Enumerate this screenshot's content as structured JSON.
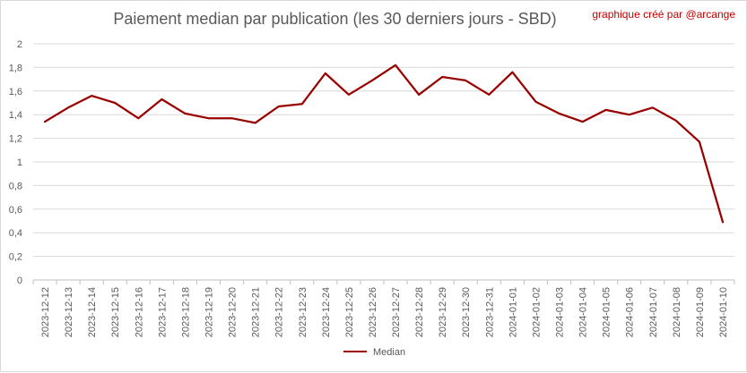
{
  "title": "Paiement median par publication (les 30 derniers jours - SBD)",
  "credit": "graphique créé par @arcange",
  "chart_data": {
    "type": "line",
    "title": "Paiement median par publication (les 30 derniers jours - SBD)",
    "xlabel": "",
    "ylabel": "",
    "ylim": [
      0,
      2
    ],
    "yticks": [
      "0",
      "0,2",
      "0,4",
      "0,6",
      "0,8",
      "1",
      "1,2",
      "1,4",
      "1,6",
      "1,8",
      "2"
    ],
    "grid": true,
    "legend_position": "bottom",
    "x": [
      "2023-12-12",
      "2023-12-13",
      "2023-12-14",
      "2023-12-15",
      "2023-12-16",
      "2023-12-17",
      "2023-12-18",
      "2023-12-19",
      "2023-12-20",
      "2023-12-21",
      "2023-12-22",
      "2023-12-23",
      "2023-12-24",
      "2023-12-25",
      "2023-12-26",
      "2023-12-27",
      "2023-12-28",
      "2023-12-29",
      "2023-12-30",
      "2023-12-31",
      "2024-01-01",
      "2024-01-02",
      "2024-01-03",
      "2024-01-04",
      "2024-01-05",
      "2024-01-06",
      "2024-01-07",
      "2024-01-08",
      "2024-01-09",
      "2024-01-10"
    ],
    "series": [
      {
        "name": "Median",
        "color": "#990000",
        "values": [
          1.34,
          1.46,
          1.56,
          1.5,
          1.37,
          1.53,
          1.41,
          1.37,
          1.37,
          1.33,
          1.47,
          1.49,
          1.75,
          1.57,
          1.69,
          1.82,
          1.57,
          1.72,
          1.69,
          1.57,
          1.76,
          1.51,
          1.41,
          1.34,
          1.44,
          1.4,
          1.46,
          1.35,
          1.17,
          0.49
        ]
      }
    ]
  }
}
